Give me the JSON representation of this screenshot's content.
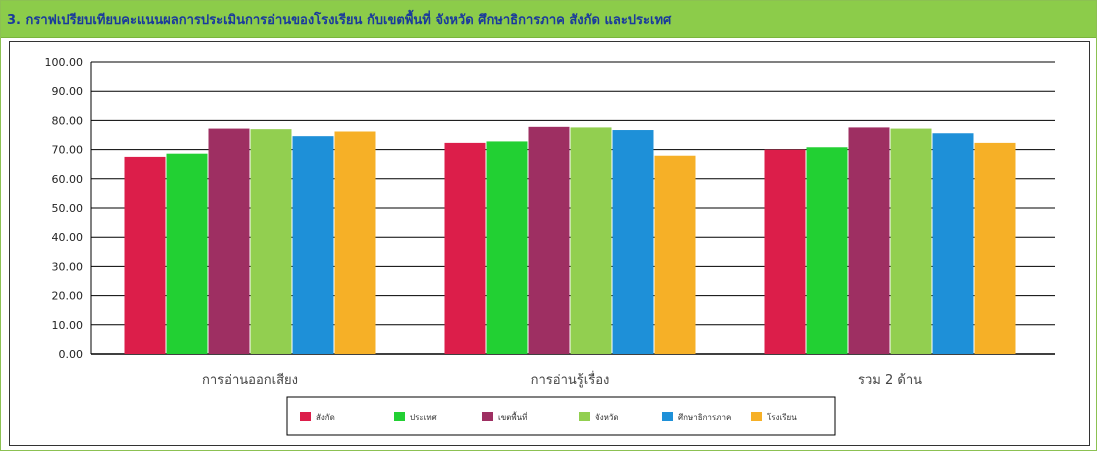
{
  "title": "3. กราฟเปรียบเทียบคะแนนผลการประเมินการอ่านของโรงเรียน กับเขตพื้นที่ จังหวัด ศึกษาธิการภาค สังกัด และประเทศ",
  "colors": {
    "title_bg": "#8ccc4a",
    "title_text": "#1a3a9c"
  },
  "chart_data": {
    "type": "bar",
    "categories": [
      "การอ่านออกเสียง",
      "การอ่านรู้เรื่อง",
      "รวม 2 ด้าน"
    ],
    "yticks": [
      "0.00",
      "10.00",
      "20.00",
      "30.00",
      "40.00",
      "50.00",
      "60.00",
      "70.00",
      "80.00",
      "90.00",
      "100.00"
    ],
    "ylim": [
      0,
      100
    ],
    "grid": true,
    "legend_position": "bottom",
    "series": [
      {
        "name": "สังกัด",
        "color": "#dc1e4a",
        "values": [
          67.5,
          72.3,
          70.0
        ]
      },
      {
        "name": "ประเทศ",
        "color": "#22d033",
        "values": [
          68.6,
          72.8,
          70.8
        ]
      },
      {
        "name": "เขตพื้นที่",
        "color": "#9e2f62",
        "values": [
          77.2,
          77.8,
          77.6
        ]
      },
      {
        "name": "จังหวัด",
        "color": "#92cf50",
        "values": [
          77.0,
          77.6,
          77.2
        ]
      },
      {
        "name": "ศึกษาธิการภาค",
        "color": "#1e90d8",
        "values": [
          74.6,
          76.7,
          75.6
        ]
      },
      {
        "name": "โรงเรียน",
        "color": "#f6b027",
        "values": [
          76.2,
          67.9,
          72.3
        ]
      }
    ]
  }
}
